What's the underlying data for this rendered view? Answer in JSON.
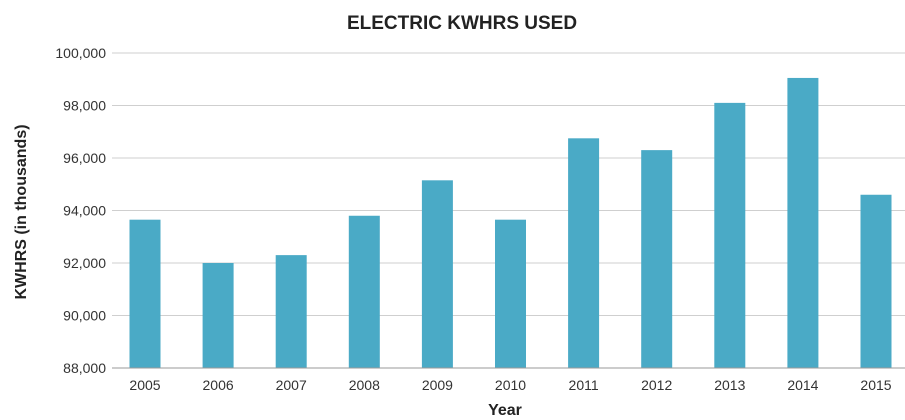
{
  "chart_data": {
    "type": "bar",
    "title": "ELECTRIC KWHRS USED",
    "xlabel": "Year",
    "ylabel": "KWHRS (in thousands)",
    "categories": [
      "2005",
      "2006",
      "2007",
      "2008",
      "2009",
      "2010",
      "2011",
      "2012",
      "2013",
      "2014",
      "2015"
    ],
    "values": [
      93650,
      92000,
      92300,
      93800,
      95150,
      93650,
      96750,
      96300,
      98100,
      99050,
      94600
    ],
    "ylim": [
      88000,
      100000
    ],
    "yticks": [
      88000,
      90000,
      92000,
      94000,
      96000,
      98000,
      100000
    ],
    "ytick_labels": [
      "88,000",
      "90,000",
      "92,000",
      "94,000",
      "96,000",
      "98,000",
      "100,000"
    ],
    "grid": true,
    "legend": "none",
    "bar_color": "#4aaac6"
  }
}
